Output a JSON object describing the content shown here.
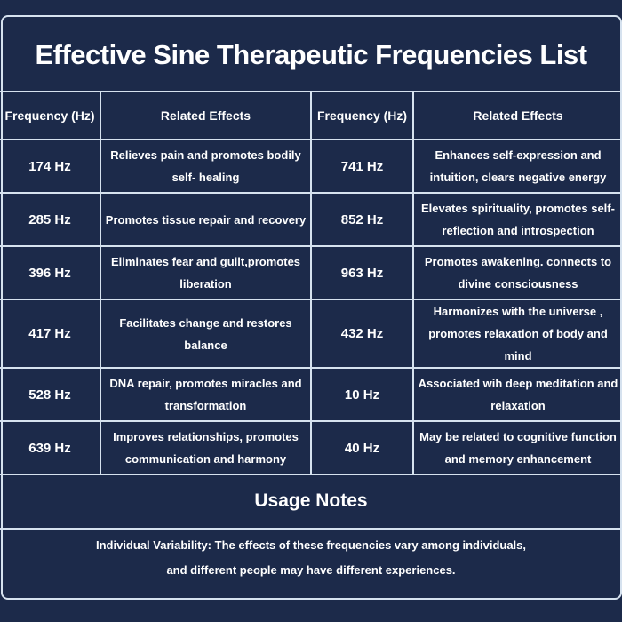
{
  "title": "Effective Sine Therapeutic Frequencies List",
  "table": {
    "headers": [
      "Frequency (Hz)",
      "Related Effects",
      "Frequency (Hz)",
      "Related Effects"
    ],
    "rows": [
      [
        "174 Hz",
        "Relieves pain and promotes bodily self- healing",
        "741 Hz",
        "Enhances self-expression and intuition, clears negative energy"
      ],
      [
        "285 Hz",
        "Promotes tissue repair and recovery",
        "852 Hz",
        "Elevates spirituality, promotes self-reflection and introspection"
      ],
      [
        "396 Hz",
        "Eliminates fear and guilt,promotes liberation",
        "963 Hz",
        "Promotes awakening. connects to divine consciousness"
      ],
      [
        "417 Hz",
        "Facilitates change and restores balance",
        "432 Hz",
        "Harmonizes with the universe , promotes relaxation of body and mind"
      ],
      [
        "528 Hz",
        "DNA repair, promotes miracles and transformation",
        "10 Hz",
        "Associated wih deep meditation and relaxation"
      ],
      [
        "639 Hz",
        "Improves relationships, promotes communication and harmony",
        "40 Hz",
        "May be related to cognitive function and memory enhancement"
      ]
    ]
  },
  "usage_notes": {
    "heading": "Usage Notes",
    "line1": "Individual Variability: The effects of these frequencies vary among individuals,",
    "line2": "and different people may have different experiences."
  },
  "colors": {
    "background": "#1c2a4a",
    "lines": "#d6e2ef",
    "text": "#ffffff"
  }
}
